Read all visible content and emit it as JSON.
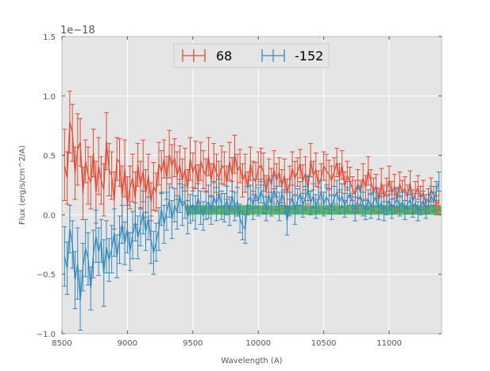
{
  "chart_data": {
    "type": "line",
    "title": "",
    "xlabel": "Wavelength (A)",
    "ylabel": "Flux (erg/s/cm^2/A)",
    "y_offset_text": "1e−18",
    "y_scale": 1e-18,
    "xlim": [
      8500,
      11400
    ],
    "ylim": [
      -1.0,
      1.5
    ],
    "xticks": [
      8500,
      9000,
      9500,
      10000,
      10500,
      11000
    ],
    "xtick_labels": [
      "8500",
      "9000",
      "9500",
      "10000",
      "10500",
      "11000"
    ],
    "yticks": [
      -1.0,
      -0.5,
      0.0,
      0.5,
      1.0,
      1.5
    ],
    "ytick_labels": [
      "−1.0",
      "−0.5",
      "0.0",
      "0.5",
      "1.0",
      "1.5"
    ],
    "grid": true,
    "legend_position": "top-center",
    "colors": {
      "background": "#e5e5e5",
      "series_68": "#e24a33",
      "series_m152": "#348abd",
      "band": "#31a03a",
      "grid": "#ffffff"
    },
    "series": [
      {
        "name": "68",
        "color": "#e24a33",
        "x": [
          8520,
          8540,
          8560,
          8580,
          8600,
          8620,
          8640,
          8660,
          8680,
          8700,
          8720,
          8740,
          8760,
          8780,
          8800,
          8820,
          8840,
          8860,
          8880,
          8900,
          8920,
          8940,
          8960,
          8980,
          9000,
          9020,
          9040,
          9060,
          9080,
          9100,
          9120,
          9140,
          9160,
          9180,
          9200,
          9220,
          9240,
          9260,
          9280,
          9300,
          9320,
          9340,
          9360,
          9380,
          9400,
          9420,
          9440,
          9460,
          9480,
          9500,
          9520,
          9540,
          9560,
          9580,
          9600,
          9620,
          9640,
          9660,
          9680,
          9700,
          9720,
          9740,
          9760,
          9780,
          9800,
          9820,
          9840,
          9860,
          9880,
          9900,
          9920,
          9940,
          9960,
          9980,
          10000,
          10020,
          10040,
          10060,
          10080,
          10100,
          10120,
          10140,
          10160,
          10180,
          10200,
          10220,
          10240,
          10260,
          10280,
          10300,
          10320,
          10340,
          10360,
          10380,
          10400,
          10420,
          10440,
          10460,
          10480,
          10500,
          10520,
          10540,
          10560,
          10580,
          10600,
          10620,
          10640,
          10660,
          10680,
          10700,
          10720,
          10740,
          10760,
          10780,
          10800,
          10820,
          10840,
          10860,
          10880,
          10900,
          10920,
          10940,
          10960,
          10980,
          11000,
          11020,
          11040,
          11060,
          11080,
          11100,
          11120,
          11140,
          11160,
          11180,
          11200,
          11220,
          11240,
          11260,
          11280,
          11300,
          11320,
          11340,
          11360,
          11380
        ],
        "y": [
          0.42,
          0.31,
          0.78,
          0.69,
          0.35,
          0.55,
          0.61,
          0.18,
          0.45,
          0.33,
          0.27,
          0.52,
          0.19,
          0.41,
          0.29,
          0.21,
          0.62,
          0.38,
          0.33,
          0.12,
          0.47,
          0.44,
          0.15,
          0.39,
          0.08,
          0.23,
          0.31,
          0.14,
          0.42,
          0.25,
          0.37,
          0.18,
          0.33,
          0.11,
          0.24,
          0.19,
          0.43,
          0.36,
          0.47,
          0.31,
          0.51,
          0.41,
          0.48,
          0.33,
          0.42,
          0.29,
          0.38,
          0.22,
          0.47,
          0.36,
          0.42,
          0.26,
          0.45,
          0.38,
          0.33,
          0.49,
          0.29,
          0.44,
          0.35,
          0.31,
          0.42,
          0.39,
          0.27,
          0.45,
          0.34,
          0.51,
          0.37,
          0.41,
          0.29,
          0.35,
          0.22,
          0.43,
          0.31,
          0.28,
          0.39,
          0.42,
          0.36,
          0.19,
          0.33,
          0.25,
          0.38,
          0.29,
          0.36,
          0.24,
          0.33,
          0.18,
          0.27,
          0.39,
          0.31,
          0.36,
          0.43,
          0.28,
          0.35,
          0.21,
          0.46,
          0.33,
          0.38,
          0.25,
          0.31,
          0.41,
          0.37,
          0.34,
          0.29,
          0.36,
          0.44,
          0.31,
          0.42,
          0.24,
          0.33,
          0.28,
          0.22,
          0.17,
          0.26,
          0.19,
          0.31,
          0.23,
          0.37,
          0.28,
          0.19,
          0.24,
          0.12,
          0.27,
          0.15,
          0.21,
          0.29,
          0.18,
          0.24,
          0.13,
          0.26,
          0.19,
          0.22,
          0.15,
          0.27,
          0.11,
          0.18,
          0.23,
          0.14,
          0.19,
          0.09,
          0.14,
          0.21,
          0.16,
          0.08,
          0.12
        ],
        "err": [
          0.3,
          0.22,
          0.26,
          0.24,
          0.22,
          0.3,
          0.2,
          0.22,
          0.18,
          0.24,
          0.22,
          0.2,
          0.26,
          0.24,
          0.2,
          0.22,
          0.24,
          0.22,
          0.2,
          0.24,
          0.18,
          0.2,
          0.26,
          0.24,
          0.24,
          0.18,
          0.2,
          0.22,
          0.18,
          0.2,
          0.26,
          0.2,
          0.18,
          0.16,
          0.2,
          0.16,
          0.18,
          0.18,
          0.16,
          0.18,
          0.2,
          0.18,
          0.16,
          0.2,
          0.16,
          0.18,
          0.18,
          0.16,
          0.18,
          0.16,
          0.2,
          0.16,
          0.16,
          0.16,
          0.14,
          0.16,
          0.14,
          0.16,
          0.16,
          0.14,
          0.16,
          0.14,
          0.14,
          0.16,
          0.14,
          0.16,
          0.14,
          0.14,
          0.14,
          0.16,
          0.14,
          0.14,
          0.14,
          0.16,
          0.14,
          0.14,
          0.16,
          0.14,
          0.14,
          0.14,
          0.16,
          0.14,
          0.12,
          0.14,
          0.14,
          0.12,
          0.14,
          0.14,
          0.14,
          0.12,
          0.12,
          0.14,
          0.14,
          0.12,
          0.14,
          0.12,
          0.14,
          0.12,
          0.12,
          0.12,
          0.14,
          0.12,
          0.12,
          0.12,
          0.12,
          0.12,
          0.12,
          0.12,
          0.12,
          0.12,
          0.1,
          0.12,
          0.12,
          0.1,
          0.12,
          0.1,
          0.12,
          0.1,
          0.12,
          0.1,
          0.1,
          0.12,
          0.1,
          0.1,
          0.12,
          0.1,
          0.1,
          0.1,
          0.1,
          0.1,
          0.1,
          0.1,
          0.1,
          0.1,
          0.1,
          0.1,
          0.1,
          0.1,
          0.08,
          0.08,
          0.1,
          0.08,
          0.08,
          0.08
        ]
      },
      {
        "name": "-152",
        "color": "#348abd",
        "x": [
          8520,
          8540,
          8560,
          8580,
          8600,
          8620,
          8640,
          8660,
          8680,
          8700,
          8720,
          8740,
          8760,
          8780,
          8800,
          8820,
          8840,
          8860,
          8880,
          8900,
          8920,
          8940,
          8960,
          8980,
          9000,
          9020,
          9040,
          9060,
          9080,
          9100,
          9120,
          9140,
          9160,
          9180,
          9200,
          9220,
          9240,
          9260,
          9280,
          9300,
          9320,
          9340,
          9360,
          9380,
          9400,
          9420,
          9440,
          9460,
          9480,
          9500,
          9520,
          9540,
          9560,
          9580,
          9600,
          9620,
          9640,
          9660,
          9680,
          9700,
          9720,
          9740,
          9760,
          9780,
          9800,
          9820,
          9840,
          9860,
          9880,
          9900,
          9920,
          9940,
          9960,
          9980,
          10000,
          10020,
          10040,
          10060,
          10080,
          10100,
          10120,
          10140,
          10160,
          10180,
          10200,
          10220,
          10240,
          10260,
          10280,
          10300,
          10320,
          10340,
          10360,
          10380,
          10400,
          10420,
          10440,
          10460,
          10480,
          10500,
          10520,
          10540,
          10560,
          10580,
          10600,
          10620,
          10640,
          10660,
          10680,
          10700,
          10720,
          10740,
          10760,
          10780,
          10800,
          10820,
          10840,
          10860,
          10880,
          10900,
          10920,
          10940,
          10960,
          10980,
          11000,
          11020,
          11040,
          11060,
          11080,
          11100,
          11120,
          11140,
          11160,
          11180,
          11200,
          11220,
          11240,
          11260,
          11280,
          11300,
          11320,
          11340,
          11360,
          11380
        ],
        "y": [
          -0.35,
          -0.45,
          -0.12,
          -0.25,
          -0.55,
          -0.41,
          -0.72,
          -0.44,
          -0.28,
          -0.37,
          -0.62,
          -0.33,
          -0.18,
          -0.31,
          -0.22,
          -0.49,
          -0.27,
          -0.38,
          -0.29,
          -0.15,
          -0.35,
          -0.21,
          -0.08,
          -0.24,
          -0.12,
          -0.31,
          -0.17,
          -0.06,
          -0.19,
          -0.1,
          0.02,
          -0.14,
          -0.03,
          -0.21,
          -0.32,
          -0.23,
          -0.12,
          0.05,
          -0.08,
          0.03,
          0.12,
          -0.04,
          0.08,
          0.02,
          0.16,
          0.07,
          0.11,
          -0.02,
          0.05,
          0.09,
          0.02,
          0.14,
          0.06,
          -0.01,
          0.08,
          0.11,
          0.04,
          0.15,
          0.09,
          0.18,
          0.08,
          0.06,
          0.12,
          0.03,
          0.16,
          0.07,
          0.11,
          -0.03,
          -0.09,
          -0.12,
          0.12,
          0.15,
          0.08,
          0.18,
          0.11,
          0.2,
          0.13,
          0.05,
          0.17,
          0.09,
          0.21,
          0.14,
          0.07,
          0.18,
          0.11,
          -0.05,
          0.09,
          0.15,
          0.04,
          0.12,
          0.18,
          0.08,
          0.14,
          0.22,
          0.1,
          0.16,
          0.07,
          0.13,
          0.19,
          0.09,
          0.15,
          0.11,
          0.06,
          0.14,
          0.19,
          0.11,
          0.16,
          0.08,
          0.13,
          0.18,
          0.1,
          0.05,
          0.12,
          0.16,
          0.09,
          0.04,
          0.13,
          0.07,
          0.11,
          0.15,
          0.06,
          0.1,
          0.03,
          0.08,
          0.12,
          0.05,
          0.09,
          0.14,
          0.07,
          0.11,
          0.04,
          0.09,
          0.13,
          0.06,
          0.1,
          0.03,
          0.08,
          0.12,
          0.05,
          0.09,
          0.16,
          0.11,
          0.2,
          0.28
        ],
        "err": [
          0.25,
          0.22,
          0.2,
          0.2,
          0.24,
          0.3,
          0.25,
          0.2,
          0.24,
          0.22,
          0.18,
          0.2,
          0.22,
          0.2,
          0.18,
          0.28,
          0.22,
          0.18,
          0.2,
          0.2,
          0.18,
          0.2,
          0.16,
          0.18,
          0.2,
          0.16,
          0.2,
          0.16,
          0.18,
          0.16,
          0.18,
          0.16,
          0.18,
          0.2,
          0.18,
          0.16,
          0.18,
          0.14,
          0.16,
          0.16,
          0.14,
          0.16,
          0.14,
          0.14,
          0.14,
          0.16,
          0.14,
          0.14,
          0.12,
          0.14,
          0.14,
          0.12,
          0.14,
          0.12,
          0.12,
          0.14,
          0.12,
          0.12,
          0.14,
          0.12,
          0.12,
          0.12,
          0.12,
          0.12,
          0.12,
          0.12,
          0.12,
          0.12,
          0.12,
          0.12,
          0.12,
          0.1,
          0.12,
          0.12,
          0.12,
          0.1,
          0.12,
          0.1,
          0.12,
          0.1,
          0.12,
          0.1,
          0.12,
          0.1,
          0.1,
          0.12,
          0.1,
          0.1,
          0.12,
          0.1,
          0.1,
          0.1,
          0.1,
          0.1,
          0.1,
          0.1,
          0.1,
          0.1,
          0.1,
          0.1,
          0.1,
          0.1,
          0.1,
          0.1,
          0.1,
          0.1,
          0.1,
          0.1,
          0.1,
          0.1,
          0.08,
          0.1,
          0.1,
          0.08,
          0.1,
          0.08,
          0.08,
          0.1,
          0.08,
          0.08,
          0.1,
          0.08,
          0.08,
          0.08,
          0.08,
          0.08,
          0.08,
          0.08,
          0.08,
          0.08,
          0.08,
          0.08,
          0.08,
          0.08,
          0.08,
          0.08,
          0.08,
          0.08,
          0.08,
          0.08,
          0.08,
          0.08,
          0.08,
          0.08
        ]
      }
    ],
    "band": {
      "name": "green band",
      "x_start": 9450,
      "x_end": 11400,
      "y_low": 0.0,
      "y_high": 0.08
    }
  }
}
